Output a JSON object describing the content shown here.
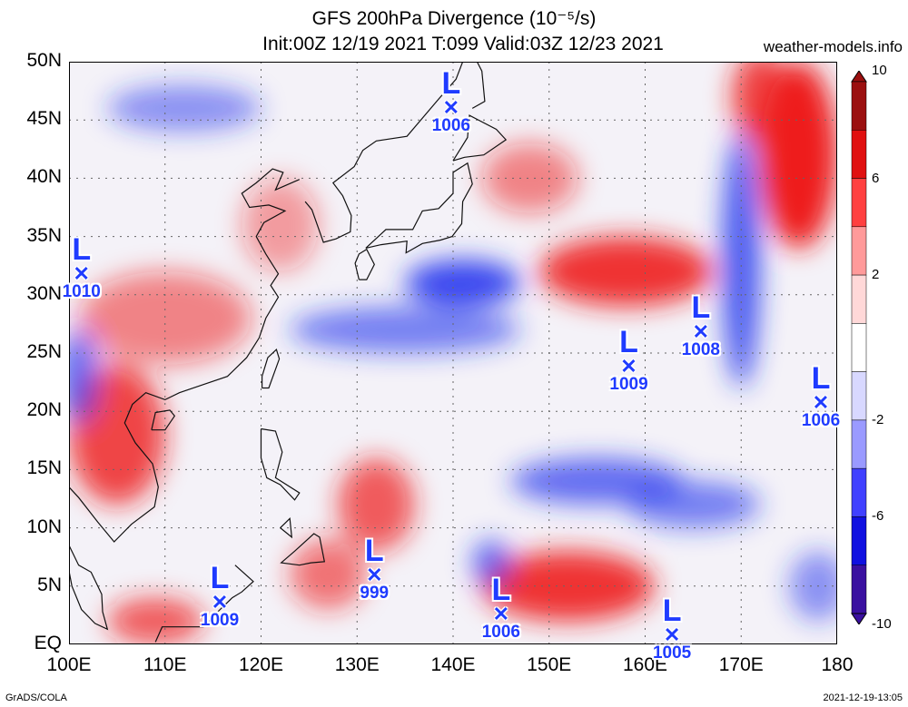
{
  "header": {
    "title_line1": "GFS 200hPa Divergence (10⁻⁵/s)",
    "title_line2": "Init:00Z 12/19 2021 T:099 Valid:03Z 12/23 2021",
    "site": "weather-models.info"
  },
  "footer": {
    "left": "GrADS/COLA",
    "right": "2021-12-19-13:05"
  },
  "axes": {
    "lat_labels": [
      "50N",
      "45N",
      "40N",
      "35N",
      "30N",
      "25N",
      "20N",
      "15N",
      "10N",
      "5N",
      "EQ"
    ],
    "lon_labels": [
      "100E",
      "110E",
      "120E",
      "130E",
      "140E",
      "150E",
      "160E",
      "170E",
      "180"
    ],
    "lat_range": [
      0,
      50
    ],
    "lon_range": [
      100,
      180
    ]
  },
  "colorbar": {
    "labels": [
      "10",
      "6",
      "2",
      "-2",
      "-6",
      "-10"
    ],
    "colors": [
      "#9b1010",
      "#e01010",
      "#ff4040",
      "#ff9a9a",
      "#ffd8d8",
      "#ffffff",
      "#d8d8ff",
      "#9a9aff",
      "#4040ff",
      "#1010e0",
      "#3a10a0"
    ]
  },
  "lows": [
    {
      "label": "L",
      "pressure": "1006",
      "lon": 139.8,
      "lat": 46.0
    },
    {
      "label": "L",
      "pressure": "1010",
      "lon": 101.3,
      "lat": 31.8
    },
    {
      "label": "L",
      "pressure": "1008",
      "lon": 165.8,
      "lat": 26.8
    },
    {
      "label": "L",
      "pressure": "1009",
      "lon": 158.3,
      "lat": 23.8
    },
    {
      "label": "L",
      "pressure": "1006",
      "lon": 178.3,
      "lat": 20.7
    },
    {
      "label": "L",
      "pressure": "999",
      "lon": 131.8,
      "lat": 5.9
    },
    {
      "label": "L",
      "pressure": "1009",
      "lon": 115.7,
      "lat": 3.6
    },
    {
      "label": "L",
      "pressure": "1006",
      "lon": 145.0,
      "lat": 2.6
    },
    {
      "label": "L",
      "pressure": "1005",
      "lon": 162.8,
      "lat": 0.8
    }
  ],
  "field_features": [
    {
      "kind": "div",
      "lon": 105,
      "lat": 18,
      "rx": 5,
      "ry": 6,
      "strength": 0.8
    },
    {
      "kind": "div",
      "lon": 110,
      "lat": 28,
      "rx": 9,
      "ry": 4,
      "strength": 0.5
    },
    {
      "kind": "div",
      "lon": 158,
      "lat": 32,
      "rx": 9,
      "ry": 3,
      "strength": 0.9
    },
    {
      "kind": "div",
      "lon": 176,
      "lat": 42,
      "rx": 4,
      "ry": 8,
      "strength": 1.0
    },
    {
      "kind": "div",
      "lon": 172,
      "lat": 47,
      "rx": 3,
      "ry": 4,
      "strength": 0.8
    },
    {
      "kind": "div",
      "lon": 152,
      "lat": 5,
      "rx": 9,
      "ry": 3,
      "strength": 0.9
    },
    {
      "kind": "div",
      "lon": 132,
      "lat": 12,
      "rx": 4,
      "ry": 4,
      "strength": 0.7
    },
    {
      "kind": "div",
      "lon": 127,
      "lat": 6,
      "rx": 4,
      "ry": 3,
      "strength": 0.6
    },
    {
      "kind": "div",
      "lon": 109,
      "lat": 2,
      "rx": 5,
      "ry": 2,
      "strength": 0.7
    },
    {
      "kind": "div",
      "lon": 122,
      "lat": 36,
      "rx": 4,
      "ry": 4,
      "strength": 0.4
    },
    {
      "kind": "div",
      "lon": 148,
      "lat": 40,
      "rx": 5,
      "ry": 3,
      "strength": 0.5
    },
    {
      "kind": "conv",
      "lon": 141,
      "lat": 31,
      "rx": 6,
      "ry": 2,
      "strength": 0.9
    },
    {
      "kind": "conv",
      "lon": 135,
      "lat": 27,
      "rx": 12,
      "ry": 2,
      "strength": 0.6
    },
    {
      "kind": "conv",
      "lon": 170,
      "lat": 33,
      "rx": 2,
      "ry": 11,
      "strength": 0.8
    },
    {
      "kind": "conv",
      "lon": 155,
      "lat": 14,
      "rx": 9,
      "ry": 2,
      "strength": 0.7
    },
    {
      "kind": "conv",
      "lon": 165,
      "lat": 12,
      "rx": 7,
      "ry": 2,
      "strength": 0.6
    },
    {
      "kind": "conv",
      "lon": 144,
      "lat": 7,
      "rx": 2,
      "ry": 2,
      "strength": 0.7
    },
    {
      "kind": "conv",
      "lon": 101,
      "lat": 23,
      "rx": 2,
      "ry": 4,
      "strength": 0.7
    },
    {
      "kind": "conv",
      "lon": 112,
      "lat": 46,
      "rx": 8,
      "ry": 2,
      "strength": 0.5
    },
    {
      "kind": "conv",
      "lon": 178,
      "lat": 5,
      "rx": 3,
      "ry": 3,
      "strength": 0.5
    }
  ]
}
